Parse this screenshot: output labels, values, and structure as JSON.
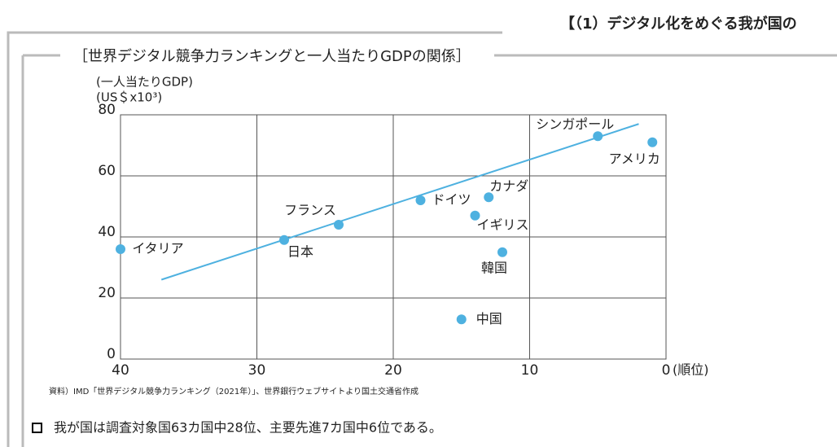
{
  "header": {
    "title": "【（1）デジタル化をめぐる我が国の"
  },
  "chart_data": {
    "type": "scatter",
    "title": "［世界デジタル競争力ランキングと一人当たりGDPの関係］",
    "y_label": [
      "(一人当たりGDP)",
      "(US＄x10³)"
    ],
    "x_label": "(順位)",
    "categories": [
      "イタリア",
      "日本",
      "フランス",
      "ドイツ",
      "カナダ",
      "イギリス",
      "韓国",
      "中国",
      "シンガポール",
      "アメリカ"
    ],
    "x": [
      40,
      28,
      24,
      18,
      13,
      14,
      12,
      15,
      5,
      1
    ],
    "values": [
      36,
      39,
      44,
      52,
      53,
      47,
      35,
      13,
      73,
      71
    ],
    "color": "#4eb1e0",
    "trend": {
      "x": [
        37,
        2
      ],
      "values": [
        26,
        77
      ],
      "color": "#4eb1e0"
    },
    "xlim": [
      40,
      0
    ],
    "xticks": [
      40,
      30,
      20,
      10,
      0
    ],
    "ylim": [
      0,
      80
    ],
    "yticks": [
      0,
      20,
      40,
      60,
      80
    ],
    "grid": true
  },
  "source": "資料）IMD「世界デジタル競争力ランキング（2021年）」、世界銀行ウェブサイトより国土交通省作成",
  "bullets": [
    "我が国は調査対象国63カ国中28位、主要先進7カ国中6位である。"
  ]
}
